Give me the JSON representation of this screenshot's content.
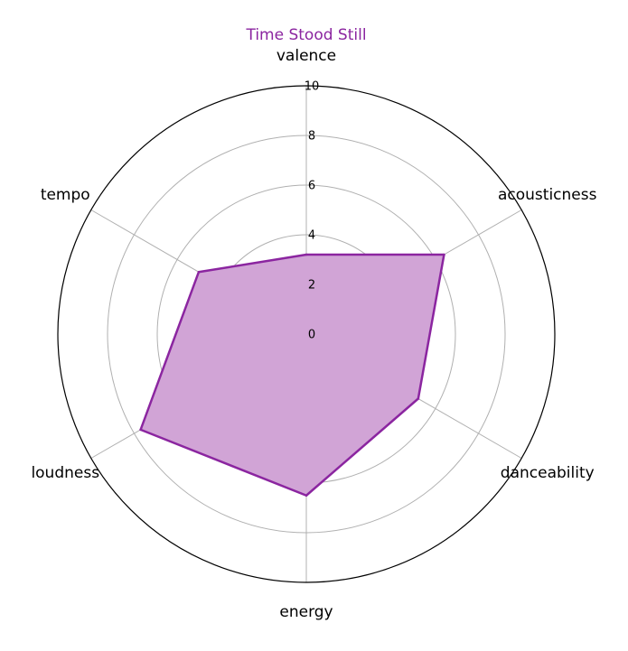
{
  "chart_data": {
    "type": "radar",
    "title": "Time Stood Still",
    "axes": [
      "valence",
      "acousticness",
      "danceability",
      "energy",
      "loudness",
      "tempo"
    ],
    "ticks": [
      "0",
      "2",
      "4",
      "6",
      "8",
      "10"
    ],
    "rmax": 10,
    "series": [
      {
        "values": [
          3.2,
          6.4,
          5.2,
          6.5,
          7.7,
          5.0
        ]
      }
    ],
    "colors": {
      "series_line": "#8b25a0",
      "series_fill": "#d1a4d6",
      "title": "#8b25a0"
    }
  }
}
